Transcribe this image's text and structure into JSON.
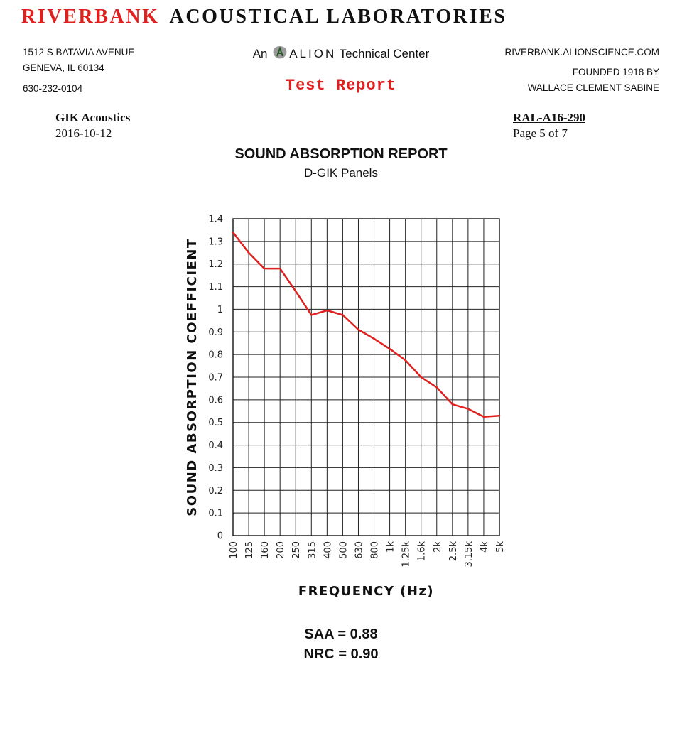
{
  "header": {
    "brand_red": "RIVERBANK",
    "brand_black": "ACOUSTICAL LABORATORIES",
    "address_line1": "1512 S BATAVIA AVENUE",
    "address_line2": "GENEVA, IL 60134",
    "phone": "630-232-0104",
    "center_prefix": "An",
    "center_company": "ALION",
    "center_suffix": "Technical Center",
    "test_report": "Test Report",
    "website": "RIVERBANK.ALIONSCIENCE.COM",
    "founded": "FOUNDED 1918 BY",
    "founder": "WALLACE CLEMENT SABINE",
    "brand_color": "#e0201e"
  },
  "client": {
    "name": "GIK Acoustics",
    "date": "2016-10-12"
  },
  "report": {
    "number": "RAL-A16-290",
    "page": "Page 5 of 7",
    "title": "SOUND ABSORPTION REPORT",
    "subtitle": "D-GIK Panels"
  },
  "chart_data": {
    "type": "line",
    "categories": [
      "100",
      "125",
      "160",
      "200",
      "250",
      "315",
      "400",
      "500",
      "630",
      "800",
      "1k",
      "1.25k",
      "1.6k",
      "2k",
      "2.5k",
      "3.15k",
      "4k",
      "5k"
    ],
    "values": [
      1.34,
      1.25,
      1.18,
      1.18,
      1.08,
      0.975,
      0.995,
      0.975,
      0.91,
      0.87,
      0.825,
      0.775,
      0.7,
      0.655,
      0.58,
      0.56,
      0.525,
      0.53
    ],
    "ylim": [
      0,
      1.4
    ],
    "yticks": [
      "0",
      "0.1",
      "0.2",
      "0.3",
      "0.4",
      "0.5",
      "0.6",
      "0.7",
      "0.8",
      "0.9",
      "1",
      "1.1",
      "1.2",
      "1.3",
      "1.4"
    ],
    "xlabel": "FREQUENCY (Hz)",
    "ylabel": "SOUND ABSORPTION COEFFICIENT",
    "grid": true,
    "line_color": "#e0201e"
  },
  "results": {
    "saa": "SAA = 0.88",
    "nrc": "NRC = 0.90"
  }
}
